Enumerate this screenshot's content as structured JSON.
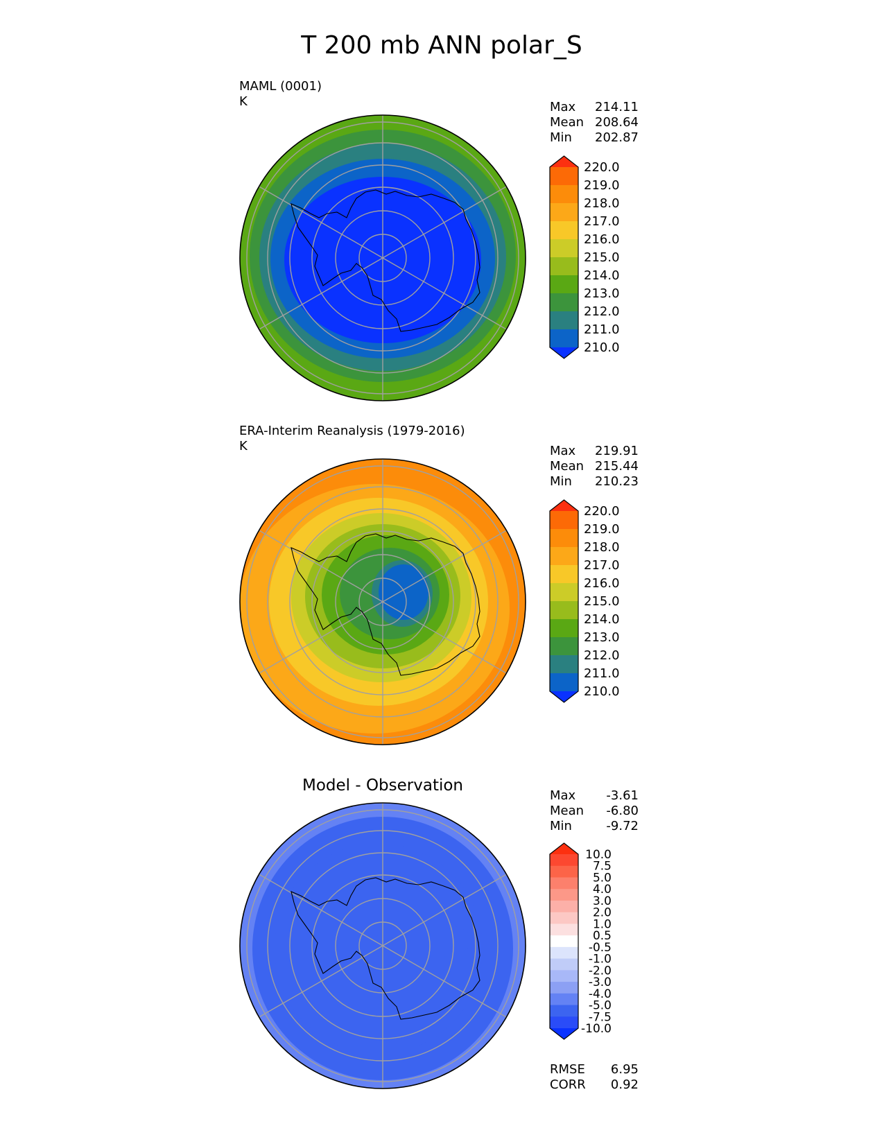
{
  "figure": {
    "title": "T 200 mb ANN polar_S"
  },
  "chart_data": [
    {
      "type": "heatmap",
      "projection": "south-polar-stereographic",
      "title": "MAML (0001)",
      "units": "K",
      "stats": [
        {
          "label": "Max",
          "value": "214.11"
        },
        {
          "label": "Mean",
          "value": "208.64"
        },
        {
          "label": "Min",
          "value": "202.87"
        }
      ],
      "colorbar": {
        "levels": [
          "210.0",
          "211.0",
          "212.0",
          "213.0",
          "214.0",
          "215.0",
          "216.0",
          "217.0",
          "218.0",
          "219.0",
          "220.0"
        ],
        "colors": [
          "#0a32ff",
          "#0c64c8",
          "#2a8080",
          "#3c943c",
          "#5aa814",
          "#98bc1c",
          "#cccc28",
          "#f8c828",
          "#fca818",
          "#fc8c0a",
          "#fc6a06",
          "#fc3010"
        ],
        "extend": "both"
      },
      "field": {
        "description": "rings from pole outward",
        "rings": [
          {
            "radius_deg_from_pole": 0,
            "value": 209.5
          },
          {
            "radius_deg_from_pole": 29,
            "value": 210.5
          },
          {
            "radius_deg_from_pole": 33,
            "value": 211.5
          },
          {
            "radius_deg_from_pole": 36,
            "value": 212.5
          },
          {
            "radius_deg_from_pole": 38,
            "value": 213.5
          }
        ]
      }
    },
    {
      "type": "heatmap",
      "projection": "south-polar-stereographic",
      "title": "ERA-Interim Reanalysis (1979-2016)",
      "units": "K",
      "stats": [
        {
          "label": "Max",
          "value": "219.91"
        },
        {
          "label": "Mean",
          "value": "215.44"
        },
        {
          "label": "Min",
          "value": "210.23"
        }
      ],
      "colorbar": {
        "levels": [
          "210.0",
          "211.0",
          "212.0",
          "213.0",
          "214.0",
          "215.0",
          "216.0",
          "217.0",
          "218.0",
          "219.0",
          "220.0"
        ],
        "colors": [
          "#0a32ff",
          "#0c64c8",
          "#2a8080",
          "#3c943c",
          "#5aa814",
          "#98bc1c",
          "#cccc28",
          "#f8c828",
          "#fca818",
          "#fc8c0a",
          "#fc6a06",
          "#fc3010"
        ],
        "extend": "both"
      },
      "field": {
        "description": "warm ring around cold vortex displaced toward upper-right",
        "rings": [
          {
            "value": 210.5
          },
          {
            "value": 211.5
          },
          {
            "value": 212.5
          },
          {
            "value": 213.5
          },
          {
            "value": 214.5
          },
          {
            "value": 215.5
          },
          {
            "value": 216.5
          },
          {
            "value": 217.5
          },
          {
            "value": 218.5
          },
          {
            "value": 219.5
          }
        ]
      }
    },
    {
      "type": "heatmap",
      "projection": "south-polar-stereographic",
      "title": "Model - Observation",
      "units": "",
      "stats": [
        {
          "label": "Max",
          "value": "-3.61"
        },
        {
          "label": "Mean",
          "value": "-6.80"
        },
        {
          "label": "Min",
          "value": "-9.72"
        }
      ],
      "bottom_stats": [
        {
          "label": "RMSE",
          "value": "6.95"
        },
        {
          "label": "CORR",
          "value": "0.92"
        }
      ],
      "colorbar": {
        "levels": [
          "-10.0",
          "-7.5",
          "-5.0",
          "-4.0",
          "-3.0",
          "-2.0",
          "-1.0",
          "-0.5",
          "0.5",
          "1.0",
          "2.0",
          "3.0",
          "4.0",
          "5.0",
          "7.5",
          "10.0"
        ],
        "colors": [
          "#0a32ff",
          "#2a4cf8",
          "#3c64f0",
          "#6482f4",
          "#8ca0f4",
          "#a8b8f8",
          "#c0ccf8",
          "#dce4fc",
          "#ffffff",
          "#fce0e0",
          "#fcc8c4",
          "#fcb0a8",
          "#fc9888",
          "#fc806c",
          "#fc6448",
          "#fc4830",
          "#fc3010"
        ],
        "extend": "both"
      },
      "field": {
        "description": "mostly -5 to -10 with lighter -4 to -5 band at edge",
        "rings": [
          {
            "value": -5.5
          },
          {
            "value": -6.5
          },
          {
            "value": -4.5
          }
        ]
      }
    }
  ],
  "outline": {
    "description": "Antarctica coastline outline"
  }
}
